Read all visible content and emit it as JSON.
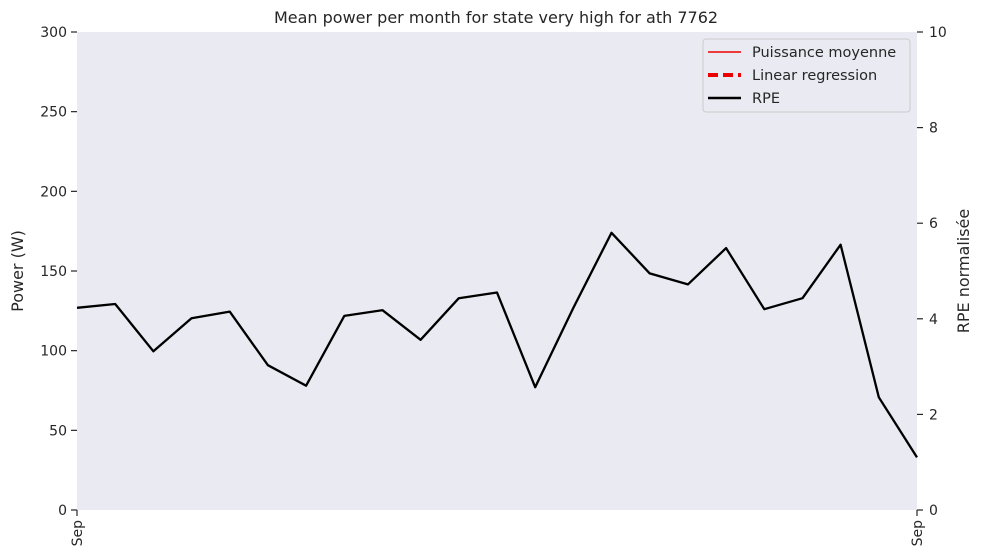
{
  "chart_data": {
    "type": "line",
    "title": "Mean power per month for state very high for ath 7762",
    "ylabel": "Power (W)",
    "y2label": "RPE normalisée",
    "ylim": [
      0,
      300
    ],
    "y2lim": [
      0,
      10
    ],
    "yticks": [
      "0",
      "50",
      "100",
      "150",
      "200",
      "250",
      "300"
    ],
    "y2ticks": [
      "0",
      "2",
      "4",
      "6",
      "8",
      "10"
    ],
    "xticks": [
      "Sep",
      "Sep"
    ],
    "grid": false,
    "legend_position": "top-right",
    "colors": {
      "plot_bg": "#eaeaf2",
      "puissance": "#ee0000",
      "regression": "#ee0000",
      "rpe": "#000000"
    },
    "series": [
      {
        "name": "Puissance moyenne",
        "axis": "left",
        "style": "solid",
        "values": []
      },
      {
        "name": "Linear regression",
        "axis": "left",
        "style": "dashed",
        "values": []
      },
      {
        "name": "RPE",
        "axis": "right",
        "style": "solid",
        "values": [
          4.23,
          4.31,
          3.32,
          4.01,
          4.15,
          3.03,
          2.6,
          4.06,
          4.18,
          3.56,
          4.43,
          4.55,
          2.57,
          4.23,
          5.8,
          4.95,
          4.72,
          5.48,
          4.2,
          4.43,
          5.55,
          2.36,
          1.1
        ]
      }
    ]
  }
}
